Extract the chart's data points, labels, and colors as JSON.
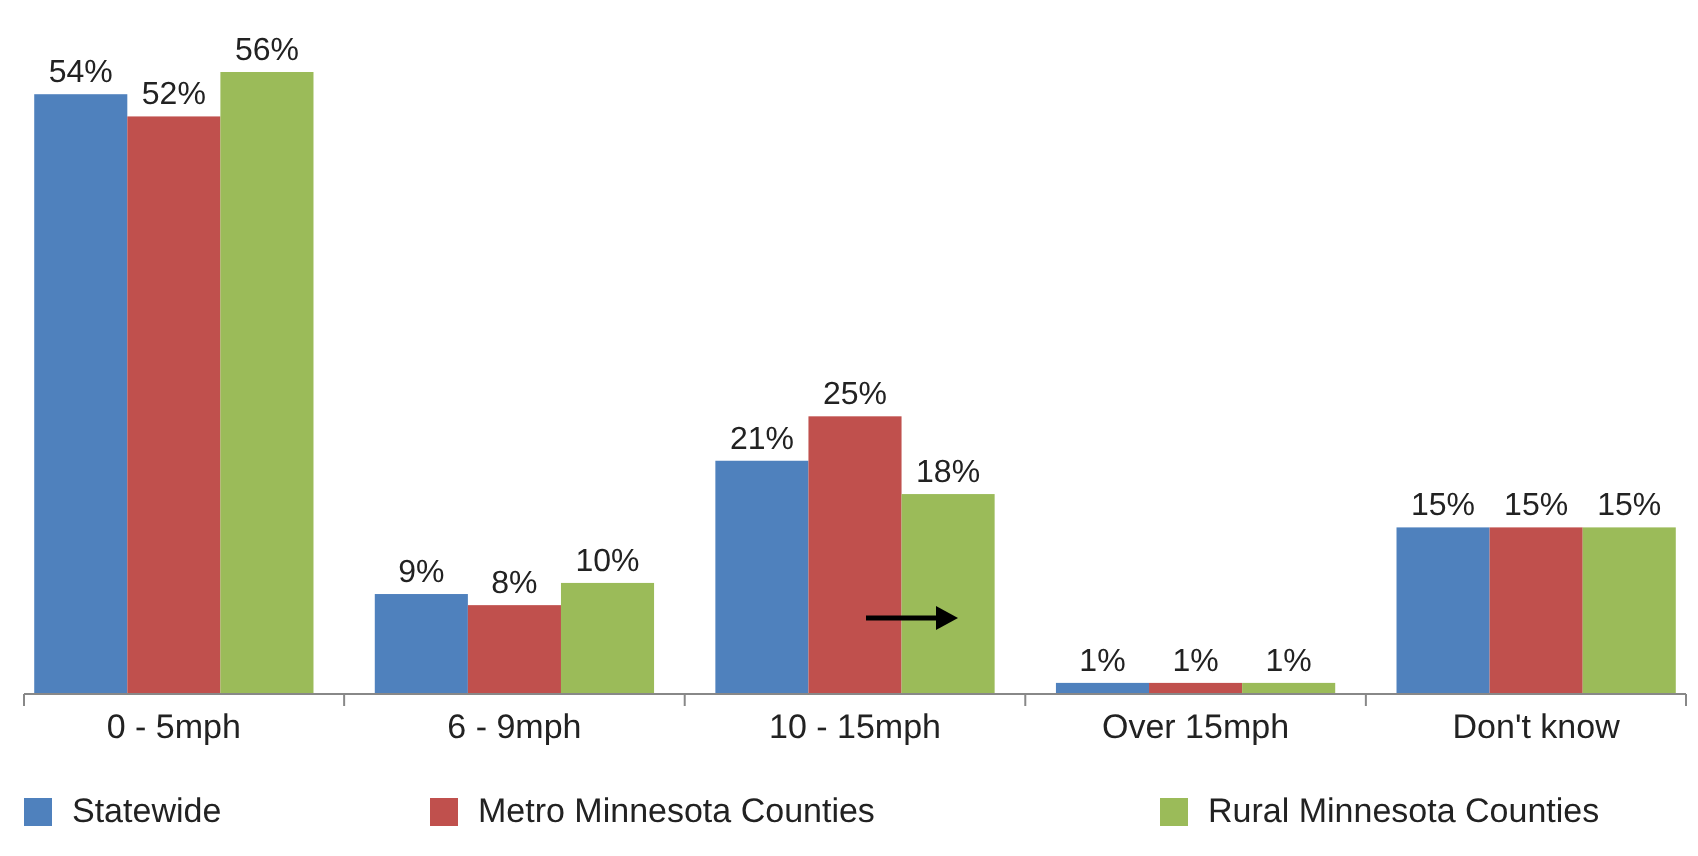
{
  "chart_data": {
    "type": "bar",
    "categories": [
      "0 - 5mph",
      "6 - 9mph",
      "10 - 15mph",
      "Over 15mph",
      "Don't know"
    ],
    "series": [
      {
        "name": "Statewide",
        "color": "#4f81bd",
        "values": [
          54,
          9,
          21,
          1,
          15
        ],
        "value_labels": [
          "54%",
          "9%",
          "21%",
          "1%",
          "15%"
        ]
      },
      {
        "name": "Metro Minnesota Counties",
        "color": "#c0504d",
        "values": [
          52,
          8,
          25,
          1,
          15
        ],
        "value_labels": [
          "52%",
          "8%",
          "25%",
          "1%",
          "15%"
        ]
      },
      {
        "name": "Rural Minnesota Counties",
        "color": "#9bbb59",
        "values": [
          56,
          10,
          18,
          1,
          15
        ],
        "value_labels": [
          "56%",
          "10%",
          "18%",
          "1%",
          "15%"
        ]
      }
    ],
    "legend": "bottom",
    "grid": false
  }
}
